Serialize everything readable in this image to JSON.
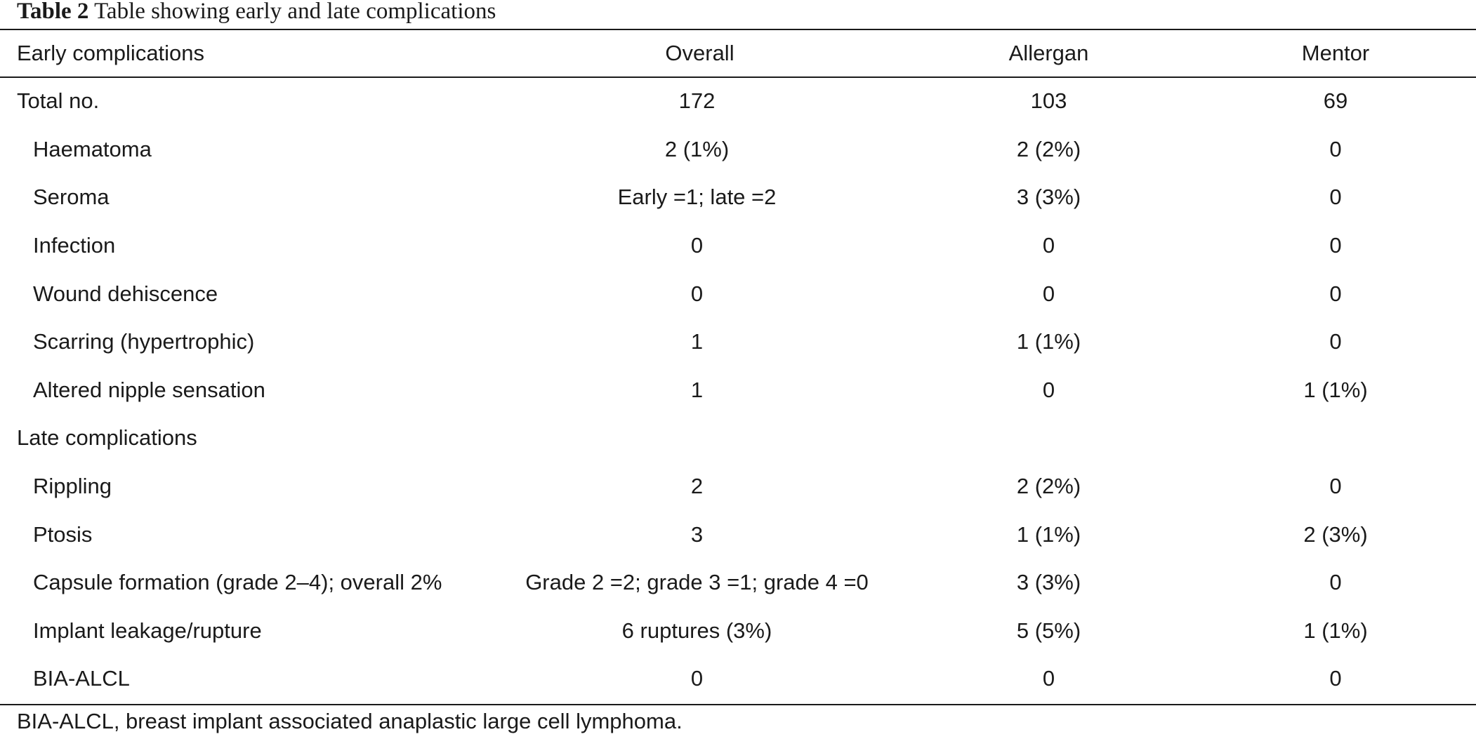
{
  "caption": {
    "label": "Table 2",
    "text": "Table showing early and late complications"
  },
  "table": {
    "headers": [
      "Early complications",
      "Overall",
      "Allergan",
      "Mentor"
    ],
    "rows": [
      {
        "label": "Total no.",
        "overall": "172",
        "allergan": "103",
        "mentor": "69"
      },
      {
        "label": "Haematoma",
        "overall": "2 (1%)",
        "allergan": "2 (2%)",
        "mentor": "0"
      },
      {
        "label": "Seroma",
        "overall": "Early =1; late =2",
        "allergan": "3 (3%)",
        "mentor": "0"
      },
      {
        "label": "Infection",
        "overall": "0",
        "allergan": "0",
        "mentor": "0"
      },
      {
        "label": "Wound dehiscence",
        "overall": "0",
        "allergan": "0",
        "mentor": "0"
      },
      {
        "label": "Scarring (hypertrophic)",
        "overall": "1",
        "allergan": "1 (1%)",
        "mentor": "0"
      },
      {
        "label": "Altered nipple sensation",
        "overall": "1",
        "allergan": "0",
        "mentor": "1 (1%)"
      },
      {
        "label": "Late complications",
        "overall": "",
        "allergan": "",
        "mentor": ""
      },
      {
        "label": "Rippling",
        "overall": "2",
        "allergan": "2 (2%)",
        "mentor": "0"
      },
      {
        "label": "Ptosis",
        "overall": "3",
        "allergan": "1 (1%)",
        "mentor": "2 (3%)"
      },
      {
        "label": "Capsule formation (grade 2–4); overall 2%",
        "overall": "Grade 2 =2; grade 3 =1; grade 4 =0",
        "allergan": "3 (3%)",
        "mentor": "0"
      },
      {
        "label": "Implant leakage/rupture",
        "overall": "6 ruptures (3%)",
        "allergan": "5 (5%)",
        "mentor": "1 (1%)"
      },
      {
        "label": "BIA-ALCL",
        "overall": "0",
        "allergan": "0",
        "mentor": "0"
      }
    ]
  },
  "footnote": "BIA-ALCL, breast implant associated anaplastic large cell lymphoma."
}
